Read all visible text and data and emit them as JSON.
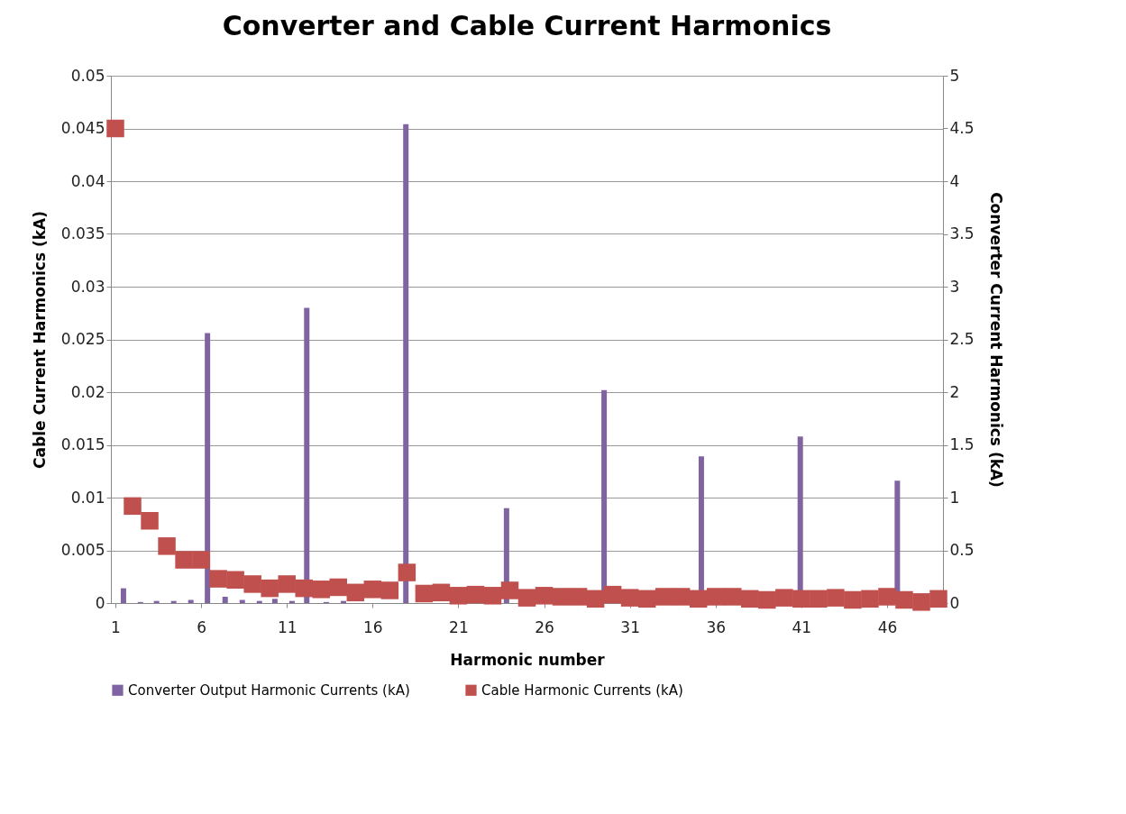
{
  "chart_data": {
    "type": "bar",
    "title": "Converter and Cable Current Harmonics",
    "xlabel": "Harmonic number",
    "ylabel": "Cable Current Harmonics (kA)",
    "y2label": "Converter Current Harmonics (kA)",
    "x": [
      1,
      2,
      3,
      4,
      5,
      6,
      7,
      8,
      9,
      10,
      11,
      12,
      13,
      14,
      15,
      16,
      17,
      18,
      19,
      20,
      21,
      22,
      23,
      24,
      25,
      26,
      27,
      28,
      29,
      30,
      31,
      32,
      33,
      34,
      35,
      36,
      37,
      38,
      39,
      40,
      41,
      42,
      43,
      44,
      45,
      46,
      47,
      48,
      49
    ],
    "xlim": [
      1,
      49
    ],
    "xticks": [
      1,
      6,
      11,
      16,
      21,
      26,
      31,
      36,
      41,
      46
    ],
    "ylim": [
      0,
      0.05
    ],
    "yticks": [
      0,
      0.005,
      0.01,
      0.015,
      0.02,
      0.025,
      0.03,
      0.035,
      0.04,
      0.045,
      0.05
    ],
    "y2lim": [
      0,
      5
    ],
    "y2ticks": [
      0,
      0.5,
      1,
      1.5,
      2,
      2.5,
      3,
      3.5,
      4,
      4.5,
      5
    ],
    "grid": "y",
    "legend": "bottom",
    "series": [
      {
        "name": "Converter Output Harmonic Currents (kA)",
        "axis": "y2",
        "color": "#8064a2",
        "x": [
          1.47,
          2.46,
          3.4,
          4.4,
          5.4,
          6.37,
          7.4,
          8.4,
          9.4,
          10.3,
          11.3,
          12.16,
          13.3,
          14.3,
          17.94,
          23.81,
          29.5,
          35.17,
          40.94,
          46.6
        ],
        "values": [
          0.14,
          0.01,
          0.02,
          0.02,
          0.03,
          2.56,
          0.06,
          0.03,
          0.02,
          0.04,
          0.02,
          2.8,
          0.01,
          0.02,
          4.54,
          0.9,
          2.02,
          1.39,
          1.58,
          1.16
        ]
      },
      {
        "name": "Cable Harmonic Currents (kA)",
        "type": "scatter",
        "marker": "square",
        "axis": "y",
        "color": "#c0504d",
        "values": [
          0.045,
          0.0092,
          0.0078,
          0.0054,
          0.0041,
          0.0041,
          0.0023,
          0.0022,
          0.0018,
          0.0014,
          0.0018,
          0.0014,
          0.0013,
          0.0015,
          0.001,
          0.0013,
          0.0012,
          0.0029,
          0.0009,
          0.001,
          0.0007,
          0.0008,
          0.0007,
          0.0012,
          0.0005,
          0.0007,
          0.0006,
          0.0006,
          0.0004,
          0.0008,
          0.0005,
          0.0004,
          0.0006,
          0.0006,
          0.0004,
          0.0006,
          0.0006,
          0.0004,
          0.0003,
          0.0005,
          0.0004,
          0.0004,
          0.0005,
          0.0003,
          0.0004,
          0.0006,
          0.0003,
          0.0001,
          0.0004
        ]
      }
    ]
  }
}
